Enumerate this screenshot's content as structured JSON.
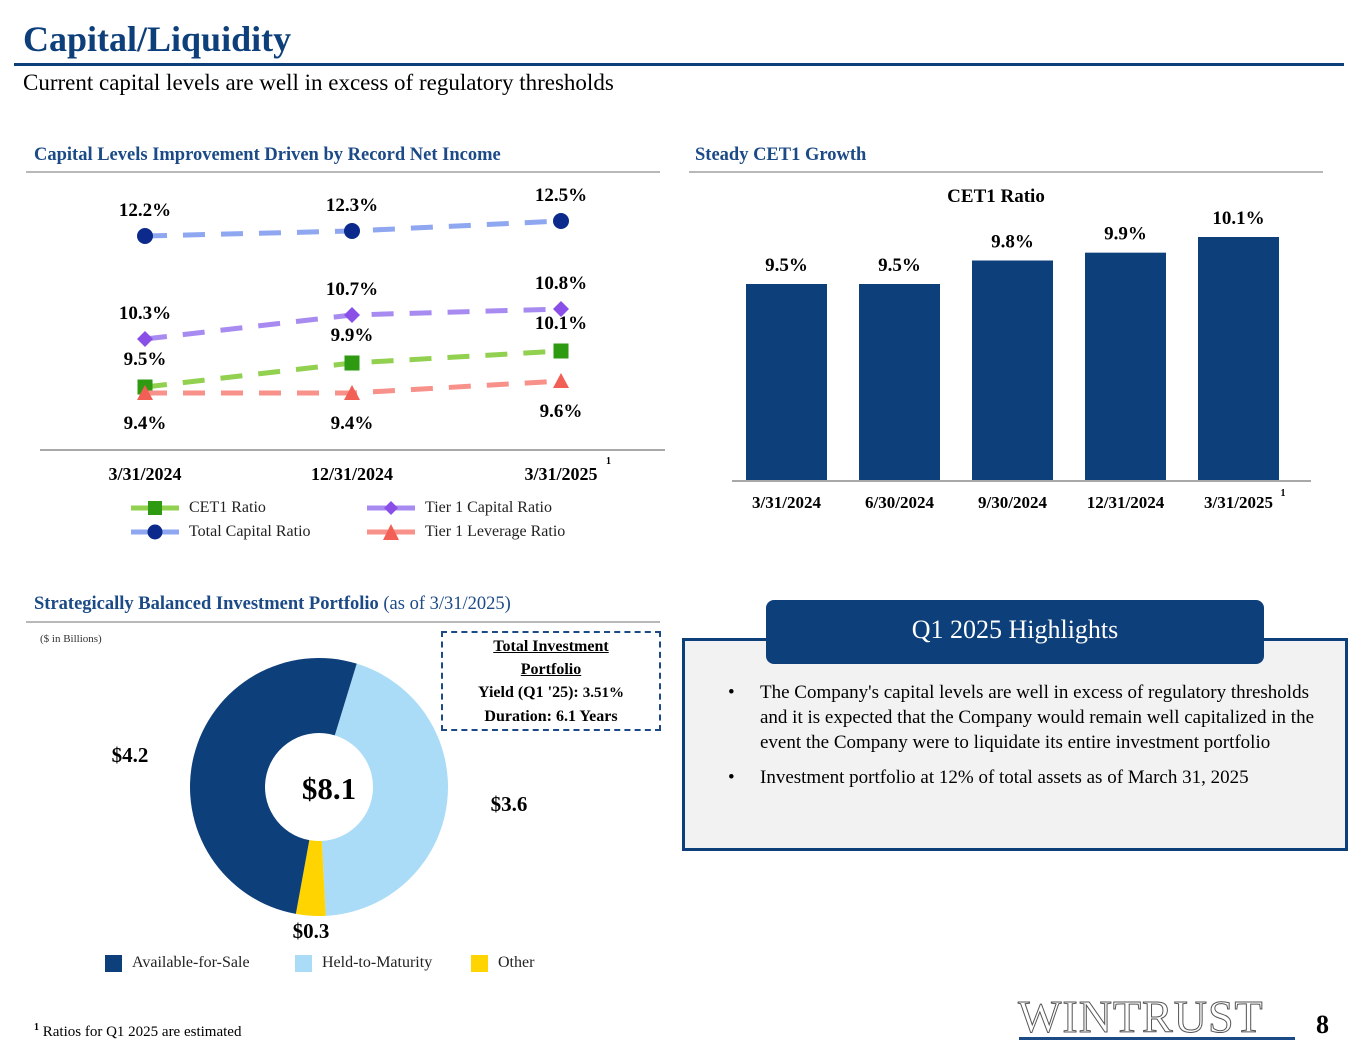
{
  "header": {
    "title": "Capital/Liquidity",
    "subtitle": "Current capital levels are well in excess of regulatory thresholds"
  },
  "sections": {
    "capital_levels": "Capital Levels Improvement Driven by Record Net Income",
    "cet1_growth": "Steady CET1 Growth",
    "portfolio_bold": "Strategically Balanced Investment Portfolio",
    "portfolio_light": "(as of 3/31/2025)"
  },
  "colors": {
    "brand_navy": "#0d3f7a",
    "cet1_line": "#92d050",
    "cet1_marker": "#2e9a11",
    "total_line": "#8fa6f0",
    "total_marker": "#0b2a8c",
    "tier1_line": "#a88bf0",
    "tier1_marker": "#8a4fe6",
    "leverage_line": "#f8918a",
    "leverage_marker": "#f25f55",
    "afs": "#0d3f7a",
    "htm": "#abdcf7",
    "other": "#ffd400"
  },
  "portfolio_box": {
    "title_line1": "Total Investment",
    "title_line2": "Portfolio",
    "yield_label": "Yield (Q1 '25):",
    "yield_value": "3.51%",
    "duration": "Duration: 6.1 Years"
  },
  "portfolio_units": "($ in Billions)",
  "highlights": {
    "title": "Q1 2025 Highlights",
    "bullet_char": "•",
    "items": [
      "The Company's capital levels are well in excess of regulatory thresholds and it is expected that the Company would remain well capitalized in the event the Company were to liquidate its entire investment portfolio",
      "Investment portfolio at 12% of total assets as of March 31, 2025"
    ]
  },
  "footnote": {
    "marker": "1",
    "text": "Ratios for Q1 2025 are estimated"
  },
  "footer": {
    "logo": "WINTRUST",
    "page_number": "8"
  },
  "chart_data": [
    {
      "type": "line",
      "title": "Capital Levels Improvement Driven by Record Net Income",
      "categories": [
        "3/31/2024",
        "12/31/2024",
        "3/31/2025"
      ],
      "category_footnotes": [
        "",
        "",
        "1"
      ],
      "xlabel": "",
      "ylabel": "",
      "grid": false,
      "legend": "bottom",
      "series": [
        {
          "name": "CET1 Ratio",
          "marker": "square",
          "values": [
            9.5,
            9.9,
            10.1
          ],
          "labels": [
            "9.5%",
            "9.9%",
            "10.1%"
          ]
        },
        {
          "name": "Tier 1 Capital Ratio",
          "marker": "diamond",
          "values": [
            10.3,
            10.7,
            10.8
          ],
          "labels": [
            "10.3%",
            "10.7%",
            "10.8%"
          ]
        },
        {
          "name": "Total Capital Ratio",
          "marker": "circle",
          "values": [
            12.2,
            12.3,
            12.5
          ],
          "labels": [
            "12.2%",
            "12.3%",
            "12.5%"
          ]
        },
        {
          "name": "Tier 1 Leverage Ratio",
          "marker": "triangle",
          "values": [
            9.4,
            9.4,
            9.6
          ],
          "labels": [
            "9.4%",
            "9.4%",
            "9.6%"
          ]
        }
      ]
    },
    {
      "type": "bar",
      "title": "CET1 Ratio",
      "categories": [
        "3/31/2024",
        "6/30/2024",
        "9/30/2024",
        "12/31/2024",
        "3/31/2025"
      ],
      "category_footnotes": [
        "",
        "",
        "",
        "",
        "1"
      ],
      "values": [
        9.5,
        9.5,
        9.8,
        9.9,
        10.1
      ],
      "labels": [
        "9.5%",
        "9.5%",
        "9.8%",
        "9.9%",
        "10.1%"
      ],
      "xlabel": "",
      "ylabel": "",
      "grid": false
    },
    {
      "type": "pie",
      "title": "Strategically Balanced Investment Portfolio (as of 3/31/2025)",
      "units": "$ in Billions",
      "total": 8.1,
      "total_label": "$8.1",
      "slices": [
        {
          "name": "Available-for-Sale",
          "value": 4.2,
          "label": "$4.2"
        },
        {
          "name": "Held-to-Maturity",
          "value": 3.6,
          "label": "$3.6"
        },
        {
          "name": "Other",
          "value": 0.3,
          "label": "$0.3"
        }
      ],
      "legend": "bottom"
    }
  ]
}
